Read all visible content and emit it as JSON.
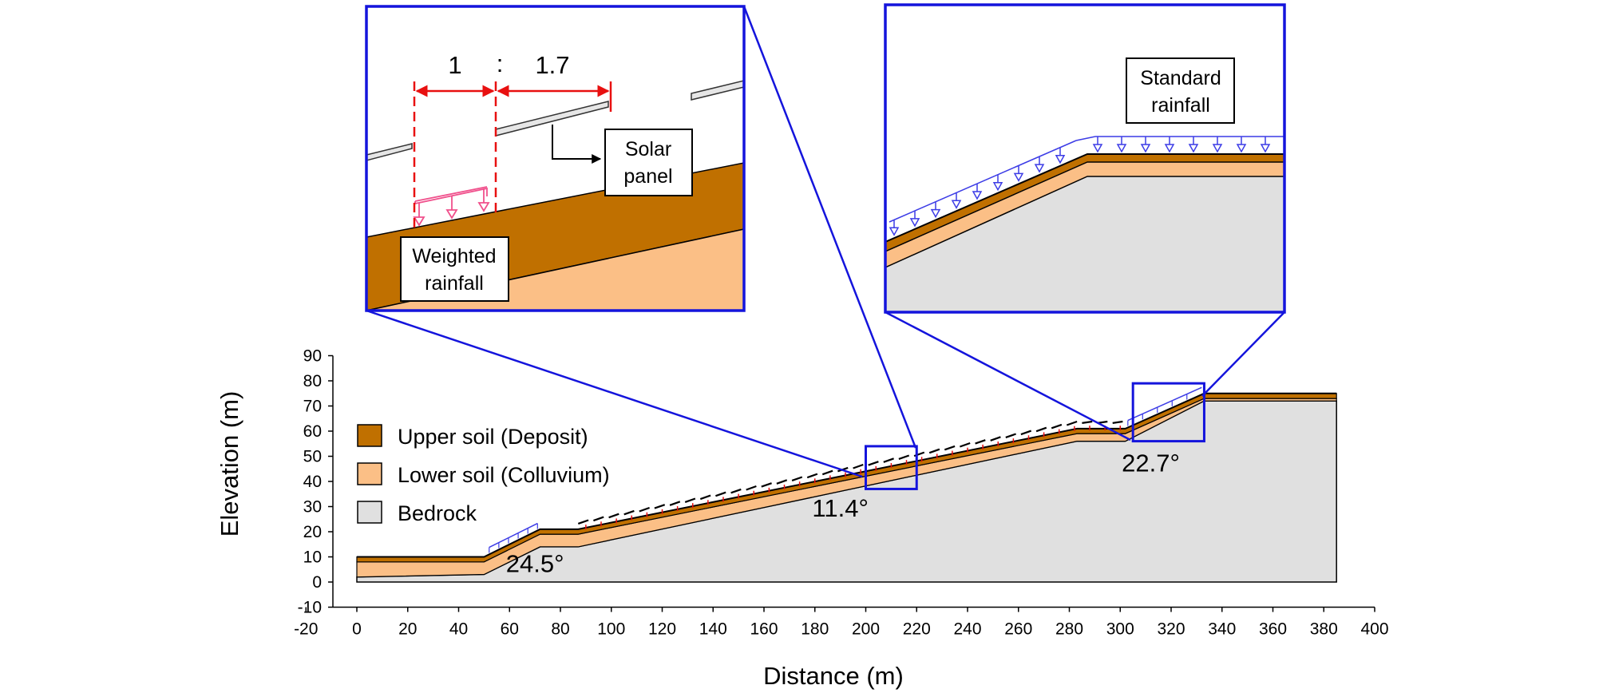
{
  "chart_data": {
    "type": "diagram",
    "title": "",
    "xlabel": "Distance (m)",
    "ylabel": "Elevation (m)",
    "xlim": [
      -20,
      400
    ],
    "ylim": [
      -10,
      90
    ],
    "x_ticks": [
      -20,
      0,
      20,
      40,
      60,
      80,
      100,
      120,
      140,
      160,
      180,
      200,
      220,
      240,
      260,
      280,
      300,
      320,
      340,
      360,
      380,
      400
    ],
    "y_ticks": [
      -10,
      0,
      10,
      20,
      30,
      40,
      50,
      60,
      70,
      80,
      90
    ],
    "layers": {
      "upper_soil": {
        "name": "Upper soil (Deposit)",
        "color": "#C07000",
        "top": [
          [
            0,
            10
          ],
          [
            50,
            10
          ],
          [
            72,
            21
          ],
          [
            87,
            21
          ],
          [
            283,
            61
          ],
          [
            302,
            61
          ],
          [
            333,
            75
          ],
          [
            385,
            75
          ]
        ],
        "bottom": [
          [
            0,
            8
          ],
          [
            50,
            8
          ],
          [
            72,
            19
          ],
          [
            87,
            19
          ],
          [
            283,
            59
          ],
          [
            302,
            59
          ],
          [
            333,
            73
          ],
          [
            385,
            73
          ]
        ]
      },
      "lower_soil": {
        "name": "Lower soil (Colluvium)",
        "color": "#FBBF86",
        "top": [
          [
            0,
            8
          ],
          [
            50,
            8
          ],
          [
            72,
            19
          ],
          [
            87,
            19
          ],
          [
            283,
            59
          ],
          [
            302,
            59
          ],
          [
            333,
            73
          ],
          [
            385,
            73
          ]
        ],
        "bottom": [
          [
            0,
            2
          ],
          [
            50,
            3
          ],
          [
            72,
            14
          ],
          [
            87,
            14
          ],
          [
            283,
            56
          ],
          [
            302,
            56
          ],
          [
            333,
            72
          ],
          [
            385,
            72
          ]
        ]
      },
      "bedrock": {
        "name": "Bedrock",
        "color": "#E0E0E0",
        "top": [
          [
            0,
            2
          ],
          [
            50,
            3
          ],
          [
            72,
            14
          ],
          [
            87,
            14
          ],
          [
            283,
            56
          ],
          [
            302,
            56
          ],
          [
            333,
            72
          ],
          [
            385,
            72
          ]
        ],
        "base": 0
      }
    },
    "solar_panel_range": [
      87,
      302
    ],
    "angles": [
      {
        "label": "24.5°",
        "x": 70,
        "y": 4
      },
      {
        "label": "11.4°",
        "x": 190,
        "y": 26
      },
      {
        "label": "22.7°",
        "x": 312,
        "y": 44
      }
    ],
    "zoom_boxes": [
      {
        "name": "weighted-rainfall-zoom",
        "x": [
          200,
          220
        ],
        "y": [
          37,
          54
        ]
      },
      {
        "name": "standard-rainfall-zoom",
        "x": [
          305,
          333
        ],
        "y": [
          56,
          79
        ]
      }
    ]
  },
  "legend": [
    {
      "label": "Upper soil (Deposit)",
      "color": "#C07000"
    },
    {
      "label": "Lower soil (Colluvium)",
      "color": "#FBBF86"
    },
    {
      "label": "Bedrock",
      "color": "#E0E0E0"
    }
  ],
  "inset_left": {
    "ratio_left": "1",
    "ratio_sep": ":",
    "ratio_right": "1.7",
    "solar_label_line1": "Solar",
    "solar_label_line2": "panel",
    "rain_label_line1": "Weighted",
    "rain_label_line2": "rainfall"
  },
  "inset_right": {
    "rain_label_line1": "Standard",
    "rain_label_line2": "rainfall"
  },
  "colors": {
    "zoom": "#1414DC",
    "dimension": "#E81010",
    "weighted_rain": "#F0508C",
    "standard_rain": "#3C3CE6"
  }
}
